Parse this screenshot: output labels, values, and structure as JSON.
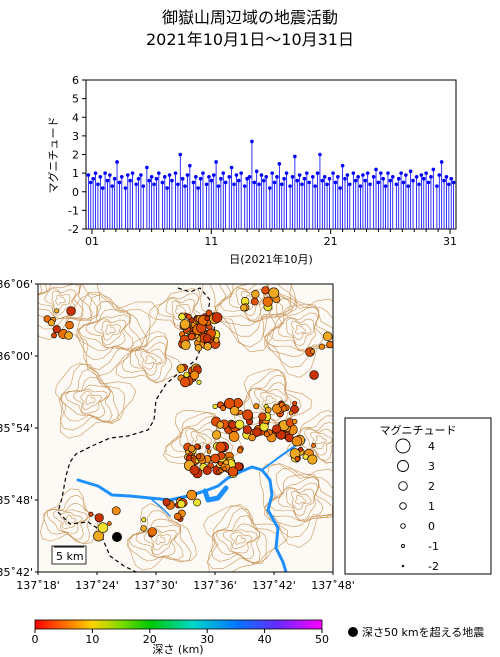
{
  "title_line1": "御嶽山周辺域の地震活動",
  "title_line2": "2021年10月1日～10月31日",
  "magnitude_chart": {
    "ylabel": "マグニチュード",
    "xlabel": "日(2021年10月)",
    "y_ticks": [
      "6",
      "5",
      "4",
      "3",
      "2",
      "1",
      "0",
      "-1",
      "-2"
    ],
    "x_ticks": [
      "01",
      "11",
      "21",
      "31"
    ],
    "ylim": [
      -2,
      6
    ],
    "xlim": [
      0.5,
      31.5
    ],
    "line_color": "#0000ff"
  },
  "map": {
    "lat_labels": [
      "36˚06'",
      "36˚00'",
      "35˚54'",
      "35˚48'",
      "35˚42'"
    ],
    "lon_labels": [
      "137˚18'",
      "137˚24'",
      "137˚30'",
      "137˚36'",
      "137˚42'",
      "137˚48'"
    ],
    "scale_label": "5 km",
    "contour_color": "#c8955a",
    "river_color": "#1e8fff",
    "boundary_color": "#000000"
  },
  "legend": {
    "title": "マグニチュード",
    "items": [
      "4",
      "3",
      "2",
      "1",
      "0",
      "-1",
      "-2"
    ]
  },
  "colorbar": {
    "ticks": [
      "0",
      "10",
      "20",
      "30",
      "40",
      "50"
    ],
    "label": "深さ (km)"
  },
  "deep_event_label": "深さ50 kmを超える地震",
  "chart_data": {
    "type": "scatter",
    "xlabel": "日(2021年10月)",
    "ylabel": "マグニチュード",
    "ylim": [
      -2,
      6
    ],
    "xlim": [
      0.5,
      31.5
    ],
    "points": [
      [
        0.7,
        0.9
      ],
      [
        0.9,
        0.5
      ],
      [
        1.1,
        0.7
      ],
      [
        1.3,
        1.0
      ],
      [
        1.5,
        0.4
      ],
      [
        1.7,
        0.8
      ],
      [
        1.9,
        0.2
      ],
      [
        2.1,
        1.0
      ],
      [
        2.3,
        0.6
      ],
      [
        2.5,
        0.9
      ],
      [
        2.7,
        0.3
      ],
      [
        2.9,
        0.7
      ],
      [
        3.1,
        1.6
      ],
      [
        3.3,
        0.5
      ],
      [
        3.5,
        0.8
      ],
      [
        3.8,
        0.2
      ],
      [
        4.0,
        0.9
      ],
      [
        4.2,
        0.6
      ],
      [
        4.4,
        1.0
      ],
      [
        4.7,
        0.4
      ],
      [
        4.9,
        0.7
      ],
      [
        5.1,
        0.9
      ],
      [
        5.3,
        0.3
      ],
      [
        5.6,
        1.3
      ],
      [
        5.8,
        0.6
      ],
      [
        6.0,
        0.8
      ],
      [
        6.2,
        0.4
      ],
      [
        6.4,
        0.7
      ],
      [
        6.6,
        1.0
      ],
      [
        6.9,
        0.5
      ],
      [
        7.1,
        0.8
      ],
      [
        7.3,
        0.2
      ],
      [
        7.5,
        0.9
      ],
      [
        7.7,
        0.6
      ],
      [
        8.0,
        1.0
      ],
      [
        8.2,
        0.4
      ],
      [
        8.4,
        2.0
      ],
      [
        8.6,
        0.7
      ],
      [
        8.8,
        0.3
      ],
      [
        9.0,
        0.9
      ],
      [
        9.2,
        1.4
      ],
      [
        9.5,
        0.5
      ],
      [
        9.7,
        0.8
      ],
      [
        9.9,
        0.2
      ],
      [
        10.1,
        0.7
      ],
      [
        10.3,
        1.0
      ],
      [
        10.6,
        0.4
      ],
      [
        10.8,
        0.8
      ],
      [
        11.0,
        0.6
      ],
      [
        11.2,
        0.9
      ],
      [
        11.4,
        1.6
      ],
      [
        11.6,
        0.3
      ],
      [
        11.8,
        0.7
      ],
      [
        12.0,
        1.0
      ],
      [
        12.2,
        0.5
      ],
      [
        12.5,
        0.8
      ],
      [
        12.7,
        1.3
      ],
      [
        12.9,
        0.4
      ],
      [
        13.1,
        0.9
      ],
      [
        13.3,
        0.6
      ],
      [
        13.5,
        1.0
      ],
      [
        13.8,
        0.3
      ],
      [
        14.0,
        0.7
      ],
      [
        14.2,
        0.8
      ],
      [
        14.4,
        2.7
      ],
      [
        14.6,
        0.5
      ],
      [
        14.8,
        1.1
      ],
      [
        15.0,
        0.4
      ],
      [
        15.2,
        0.9
      ],
      [
        15.4,
        0.6
      ],
      [
        15.6,
        0.8
      ],
      [
        15.9,
        0.2
      ],
      [
        16.1,
        1.0
      ],
      [
        16.3,
        0.5
      ],
      [
        16.5,
        0.8
      ],
      [
        16.7,
        1.5
      ],
      [
        16.9,
        0.4
      ],
      [
        17.1,
        0.7
      ],
      [
        17.3,
        1.0
      ],
      [
        17.6,
        0.3
      ],
      [
        17.8,
        0.8
      ],
      [
        18.0,
        1.9
      ],
      [
        18.2,
        0.6
      ],
      [
        18.4,
        0.9
      ],
      [
        18.6,
        0.4
      ],
      [
        18.8,
        0.7
      ],
      [
        19.0,
        1.0
      ],
      [
        19.2,
        0.5
      ],
      [
        19.5,
        0.8
      ],
      [
        19.7,
        0.3
      ],
      [
        19.9,
        1.0
      ],
      [
        20.1,
        2.0
      ],
      [
        20.3,
        0.6
      ],
      [
        20.5,
        0.8
      ],
      [
        20.7,
        0.4
      ],
      [
        20.9,
        0.7
      ],
      [
        21.2,
        1.0
      ],
      [
        21.4,
        0.5
      ],
      [
        21.6,
        0.8
      ],
      [
        21.8,
        0.2
      ],
      [
        22.0,
        1.4
      ],
      [
        22.2,
        0.7
      ],
      [
        22.4,
        0.9
      ],
      [
        22.6,
        0.4
      ],
      [
        22.9,
        1.0
      ],
      [
        23.1,
        0.6
      ],
      [
        23.3,
        0.8
      ],
      [
        23.5,
        0.3
      ],
      [
        23.7,
        0.9
      ],
      [
        23.9,
        0.6
      ],
      [
        24.1,
        1.0
      ],
      [
        24.3,
        0.4
      ],
      [
        24.6,
        0.8
      ],
      [
        24.8,
        1.2
      ],
      [
        25.0,
        0.5
      ],
      [
        25.2,
        1.0
      ],
      [
        25.4,
        0.7
      ],
      [
        25.6,
        0.3
      ],
      [
        25.8,
        1.0
      ],
      [
        26.0,
        0.6
      ],
      [
        26.2,
        0.8
      ],
      [
        26.5,
        0.4
      ],
      [
        26.7,
        0.7
      ],
      [
        26.9,
        1.0
      ],
      [
        27.1,
        0.5
      ],
      [
        27.3,
        0.9
      ],
      [
        27.5,
        0.3
      ],
      [
        27.7,
        1.1
      ],
      [
        27.9,
        0.6
      ],
      [
        28.2,
        0.8
      ],
      [
        28.4,
        0.4
      ],
      [
        28.6,
        0.9
      ],
      [
        28.8,
        0.7
      ],
      [
        29.0,
        1.0
      ],
      [
        29.2,
        0.5
      ],
      [
        29.4,
        0.8
      ],
      [
        29.6,
        1.2
      ],
      [
        29.9,
        0.3
      ],
      [
        30.1,
        0.9
      ],
      [
        30.3,
        1.6
      ],
      [
        30.5,
        0.6
      ],
      [
        30.7,
        0.8
      ],
      [
        30.9,
        0.4
      ],
      [
        31.1,
        0.7
      ],
      [
        31.3,
        0.5
      ]
    ]
  }
}
